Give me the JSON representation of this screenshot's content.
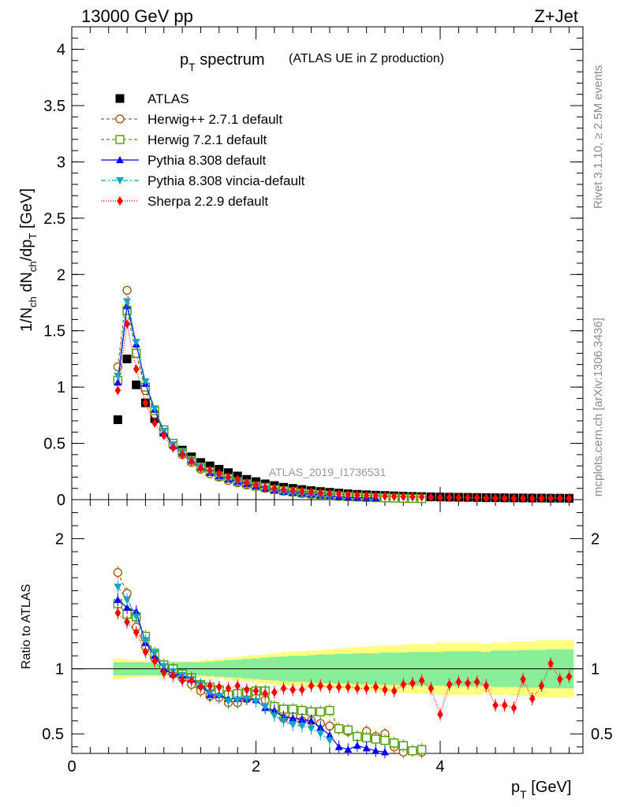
{
  "header": {
    "energy": "13000 GeV pp",
    "process": "Z+Jet",
    "analysis_id": "ATLAS_2019_I1736531",
    "rivet_info": "Rivet 3.1.10, ≥ 2.5M events",
    "site_info": "mcplots.cern.ch [arXiv:1306.3436]"
  },
  "chart_data": [
    {
      "type": "scatter",
      "title": "p_T spectrum",
      "subtitle": "(ATLAS UE in Z production)",
      "xlabel": "p_T [GeV]",
      "ylabel": "1/N_ch dN_ch/dp_T [GeV]",
      "xlim": [
        0,
        5.55
      ],
      "ylim": [
        0,
        4.2
      ],
      "yticks": [
        "0",
        "0.5",
        "1",
        "1.5",
        "2",
        "2.5",
        "3",
        "3.5",
        "4"
      ],
      "legend_position": "top-left",
      "x": [
        0.5,
        0.6,
        0.7,
        0.8,
        0.9,
        1.0,
        1.1,
        1.2,
        1.3,
        1.4,
        1.5,
        1.6,
        1.7,
        1.8,
        1.9,
        2.0,
        2.1,
        2.2,
        2.3,
        2.4,
        2.5,
        2.6,
        2.7,
        2.8,
        2.9,
        3.0,
        3.1,
        3.2,
        3.3,
        3.4,
        3.5,
        3.6,
        3.7,
        3.8,
        3.9,
        4.0,
        4.1,
        4.2,
        4.3,
        4.4,
        4.5,
        4.6,
        4.7,
        4.8,
        4.9,
        5.0,
        5.1,
        5.2,
        5.3,
        5.4
      ],
      "series": [
        {
          "name": "ATLAS",
          "color": "#000000",
          "marker": "square-filled",
          "values": [
            0.71,
            1.25,
            1.02,
            0.86,
            0.72,
            0.6,
            0.5,
            0.44,
            0.38,
            0.33,
            0.3,
            0.27,
            0.24,
            0.21,
            0.18,
            0.16,
            0.14,
            0.125,
            0.11,
            0.1,
            0.09,
            0.08,
            0.072,
            0.065,
            0.058,
            0.052,
            0.047,
            0.043,
            0.04,
            0.037,
            0.034,
            0.031,
            0.029,
            0.027,
            0.025,
            0.023,
            0.022,
            0.021,
            0.02,
            0.019,
            0.018,
            0.017,
            0.016,
            0.015,
            0.015,
            0.014,
            0.014,
            0.013,
            0.013,
            0.012
          ]
        },
        {
          "name": "Herwig++ 2.7.1 default",
          "color": "#a55a14",
          "marker": "circle-open",
          "dash": "4,3",
          "values": [
            1.18,
            1.86,
            1.3,
            0.97,
            0.76,
            0.61,
            0.48,
            0.4,
            0.33,
            0.27,
            0.23,
            0.2,
            0.17,
            0.15,
            0.13,
            0.12,
            0.1,
            0.088,
            0.075,
            0.065,
            0.054,
            0.046,
            0.04,
            0.034,
            0.029,
            0.025,
            0.022,
            0.019,
            0.017,
            0.015
          ]
        },
        {
          "name": "Herwig 7.2.1 default",
          "color": "#4e9a06",
          "marker": "square-open",
          "dash": "4,3",
          "values": [
            1.06,
            1.68,
            1.3,
            1.0,
            0.79,
            0.62,
            0.5,
            0.42,
            0.35,
            0.29,
            0.25,
            0.21,
            0.19,
            0.16,
            0.14,
            0.12,
            0.11,
            0.09,
            0.08,
            0.07,
            0.06,
            0.052,
            0.046,
            0.04,
            0.033,
            0.028,
            0.024,
            0.021,
            0.018,
            0.016,
            0.014,
            0.012,
            0.011,
            0.01
          ]
        },
        {
          "name": "Pythia 8.308 default",
          "color": "#0000ff",
          "marker": "triangle-up-filled",
          "dash": "",
          "values": [
            1.04,
            1.72,
            1.38,
            1.03,
            0.8,
            0.6,
            0.48,
            0.42,
            0.35,
            0.29,
            0.24,
            0.21,
            0.18,
            0.16,
            0.14,
            0.12,
            0.1,
            0.085,
            0.07,
            0.062,
            0.055,
            0.048,
            0.04,
            0.032,
            0.024,
            0.02,
            0.018,
            0.016,
            0.014
          ]
        },
        {
          "name": "Pythia 8.308 vincia-default",
          "color": "#12a4c4",
          "marker": "triangle-down-filled",
          "dash": "6,3,2,3",
          "values": [
            1.1,
            1.76,
            1.4,
            1.05,
            0.81,
            0.61,
            0.49,
            0.42,
            0.35,
            0.29,
            0.24,
            0.21,
            0.18,
            0.16,
            0.14,
            0.12,
            0.1,
            0.08,
            0.066,
            0.057,
            0.05,
            0.043,
            0.036,
            0.029
          ]
        },
        {
          "name": "Sherpa 2.2.9 default",
          "color": "#ff0000",
          "marker": "diamond-filled",
          "dash": "1,2",
          "values": [
            0.97,
            1.56,
            1.16,
            0.86,
            0.68,
            0.57,
            0.46,
            0.4,
            0.34,
            0.28,
            0.26,
            0.23,
            0.2,
            0.18,
            0.15,
            0.13,
            0.11,
            0.1,
            0.09,
            0.083,
            0.075,
            0.068,
            0.061,
            0.055,
            0.05,
            0.045,
            0.04,
            0.036,
            0.034,
            0.031,
            0.028,
            0.027,
            0.025,
            0.024,
            0.021,
            0.018,
            0.019,
            0.019,
            0.018,
            0.017,
            0.016,
            0.013,
            0.012,
            0.011,
            0.012,
            0.011,
            0.012,
            0.013,
            0.012,
            0.011
          ]
        }
      ]
    },
    {
      "type": "scatter",
      "title": "",
      "xlabel": "p_T [GeV]",
      "ylabel": "Ratio to ATLAS",
      "xlim": [
        0,
        5.55
      ],
      "ylim": [
        0.35,
        2.3
      ],
      "yticks": [
        "0.5",
        "1",
        "2"
      ],
      "xticks": [
        "0",
        "2",
        "4"
      ],
      "reference_line": 1,
      "band_inner_halfwidth": [
        0.05,
        0.05,
        0.05,
        0.05,
        0.05,
        0.05,
        0.05,
        0.05,
        0.05,
        0.05,
        0.055,
        0.06,
        0.065,
        0.07,
        0.075,
        0.08,
        0.085,
        0.09,
        0.095,
        0.1,
        0.1,
        0.105,
        0.11,
        0.11,
        0.115,
        0.115,
        0.12,
        0.12,
        0.12,
        0.125,
        0.125,
        0.125,
        0.13,
        0.13,
        0.13,
        0.13,
        0.135,
        0.135,
        0.135,
        0.135,
        0.13,
        0.14,
        0.14,
        0.14,
        0.145,
        0.145,
        0.145,
        0.15,
        0.15,
        0.15
      ],
      "band_outer_halfwidth": [
        0.08,
        0.07,
        0.065,
        0.06,
        0.06,
        0.06,
        0.06,
        0.06,
        0.06,
        0.065,
        0.07,
        0.075,
        0.085,
        0.09,
        0.1,
        0.105,
        0.11,
        0.12,
        0.125,
        0.13,
        0.135,
        0.14,
        0.145,
        0.15,
        0.155,
        0.16,
        0.165,
        0.17,
        0.175,
        0.18,
        0.18,
        0.185,
        0.19,
        0.19,
        0.19,
        0.2,
        0.2,
        0.2,
        0.2,
        0.2,
        0.19,
        0.2,
        0.2,
        0.21,
        0.21,
        0.21,
        0.22,
        0.22,
        0.22,
        0.22
      ],
      "series": [
        {
          "name": "Herwig++ 2.7.1 default",
          "values": [
            1.74,
            1.58,
            1.32,
            1.17,
            1.08,
            1.02,
            0.96,
            0.93,
            0.88,
            0.83,
            0.79,
            0.78,
            0.74,
            0.74,
            0.77,
            0.78,
            0.76,
            0.68,
            0.62,
            0.64,
            0.6,
            0.6,
            0.58,
            0.56,
            0.54,
            0.52,
            0.48,
            0.52,
            0.48,
            0.5,
            0.4,
            0.36,
            0.37,
            0.36
          ]
        },
        {
          "name": "Herwig 7.2.1 default",
          "values": [
            1.5,
            1.42,
            1.4,
            1.25,
            1.12,
            1.03,
            1.0,
            0.96,
            0.93,
            0.88,
            0.86,
            0.84,
            0.8,
            0.81,
            0.82,
            0.83,
            0.83,
            0.71,
            0.69,
            0.69,
            0.68,
            0.67,
            0.67,
            0.68,
            0.54,
            0.53,
            0.48,
            0.47,
            0.46,
            0.45,
            0.43,
            0.41,
            0.37,
            0.38
          ]
        },
        {
          "name": "Pythia 8.308 default",
          "values": [
            1.53,
            1.47,
            1.44,
            1.2,
            1.1,
            1.0,
            0.96,
            0.95,
            0.92,
            0.88,
            0.8,
            0.8,
            0.77,
            0.77,
            0.77,
            0.76,
            0.7,
            0.68,
            0.63,
            0.62,
            0.61,
            0.6,
            0.55,
            0.49,
            0.4,
            0.38,
            0.41,
            0.39,
            0.37,
            0.36
          ]
        },
        {
          "name": "Pythia 8.308 vincia-default",
          "values": [
            1.63,
            1.53,
            1.4,
            1.22,
            1.12,
            1.02,
            0.98,
            0.95,
            0.92,
            0.88,
            0.82,
            0.79,
            0.75,
            0.76,
            0.77,
            0.75,
            0.71,
            0.64,
            0.6,
            0.57,
            0.56,
            0.54,
            0.5,
            0.45
          ]
        },
        {
          "name": "Sherpa 2.2.9 default",
          "values": [
            1.43,
            1.36,
            1.28,
            1.13,
            1.06,
            0.97,
            0.95,
            0.91,
            0.91,
            0.86,
            0.87,
            0.86,
            0.85,
            0.87,
            0.84,
            0.83,
            0.81,
            0.82,
            0.85,
            0.84,
            0.84,
            0.87,
            0.87,
            0.86,
            0.86,
            0.86,
            0.85,
            0.85,
            0.86,
            0.84,
            0.83,
            0.88,
            0.89,
            0.91,
            0.85,
            0.65,
            0.88,
            0.9,
            0.89,
            0.9,
            0.87,
            0.72,
            0.72,
            0.7,
            0.92,
            0.77,
            0.87,
            1.04,
            0.92,
            0.94
          ]
        }
      ]
    }
  ]
}
